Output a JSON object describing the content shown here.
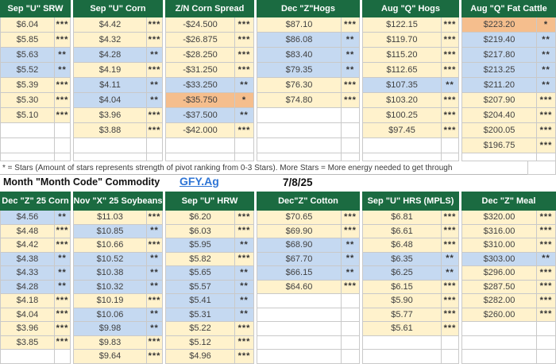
{
  "note": "* = Stars (Amount of stars represents strength of pivot ranking from 0-3 Stars). More Stars = More energy needed to get through",
  "legend_title": "Month \"Month Code\" Commodity",
  "link_label": "GFY.Ag",
  "report_date": "7/8/25",
  "star_symbol": "*",
  "colors": {
    "header_green": "#1B6B41",
    "cream": "#FFF2CC",
    "blue": "#C5D9F1",
    "orange": "#F5BE8D",
    "value_text": "#404040",
    "link_blue": "#2E75D6",
    "grid_border": "#C9C9C9",
    "star": "#333333"
  },
  "top_tables": [
    {
      "title": "Sep \"U\" SRW",
      "rows": [
        {
          "value": "$6.04",
          "stars": 3,
          "bg": "c"
        },
        {
          "value": "$5.85",
          "stars": 3,
          "bg": "c"
        },
        {
          "value": "$5.63",
          "stars": 2,
          "bg": "b"
        },
        {
          "value": "$5.52",
          "stars": 2,
          "bg": "b"
        },
        {
          "value": "$5.39",
          "stars": 3,
          "bg": "c"
        },
        {
          "value": "$5.30",
          "stars": 3,
          "bg": "c"
        },
        {
          "value": "$5.10",
          "stars": 3,
          "bg": "c"
        }
      ]
    },
    {
      "title": "Sep \"U\" Corn",
      "rows": [
        {
          "value": "$4.42",
          "stars": 3,
          "bg": "c"
        },
        {
          "value": "$4.32",
          "stars": 3,
          "bg": "c"
        },
        {
          "value": "$4.28",
          "stars": 2,
          "bg": "b"
        },
        {
          "value": "$4.19",
          "stars": 3,
          "bg": "c"
        },
        {
          "value": "$4.11",
          "stars": 2,
          "bg": "b"
        },
        {
          "value": "$4.04",
          "stars": 2,
          "bg": "b"
        },
        {
          "value": "$3.96",
          "stars": 3,
          "bg": "c"
        },
        {
          "value": "$3.88",
          "stars": 3,
          "bg": "c"
        }
      ]
    },
    {
      "title": "Z/N Corn Spread",
      "rows": [
        {
          "value": "-$24.500",
          "stars": 3,
          "bg": "c"
        },
        {
          "value": "-$26.875",
          "stars": 3,
          "bg": "c"
        },
        {
          "value": "-$28.250",
          "stars": 3,
          "bg": "c"
        },
        {
          "value": "-$31.250",
          "stars": 3,
          "bg": "c"
        },
        {
          "value": "-$33.250",
          "stars": 2,
          "bg": "b"
        },
        {
          "value": "-$35.750",
          "stars": 1,
          "bg": "o"
        },
        {
          "value": "-$37.500",
          "stars": 2,
          "bg": "b"
        },
        {
          "value": "-$42.000",
          "stars": 3,
          "bg": "c"
        }
      ]
    },
    {
      "title": "Dec \"Z\"Hogs",
      "rows": [
        {
          "value": "$87.10",
          "stars": 3,
          "bg": "c"
        },
        {
          "value": "$86.08",
          "stars": 2,
          "bg": "b"
        },
        {
          "value": "$83.40",
          "stars": 2,
          "bg": "b"
        },
        {
          "value": "$79.35",
          "stars": 2,
          "bg": "b"
        },
        {
          "value": "$76.30",
          "stars": 3,
          "bg": "c"
        },
        {
          "value": "$74.80",
          "stars": 3,
          "bg": "c"
        }
      ]
    },
    {
      "title": "Aug \"Q\" Hogs",
      "rows": [
        {
          "value": "$122.15",
          "stars": 3,
          "bg": "c"
        },
        {
          "value": "$119.70",
          "stars": 3,
          "bg": "c"
        },
        {
          "value": "$115.20",
          "stars": 3,
          "bg": "c"
        },
        {
          "value": "$112.65",
          "stars": 3,
          "bg": "c"
        },
        {
          "value": "$107.35",
          "stars": 2,
          "bg": "b"
        },
        {
          "value": "$103.20",
          "stars": 3,
          "bg": "c"
        },
        {
          "value": "$100.25",
          "stars": 3,
          "bg": "c"
        },
        {
          "value": "$97.45",
          "stars": 3,
          "bg": "c"
        }
      ]
    },
    {
      "title": "Aug \"Q\" Fat  Cattle",
      "rows": [
        {
          "value": "$223.20",
          "stars": 1,
          "bg": "o"
        },
        {
          "value": "$219.40",
          "stars": 2,
          "bg": "b"
        },
        {
          "value": "$217.80",
          "stars": 2,
          "bg": "b"
        },
        {
          "value": "$213.25",
          "stars": 2,
          "bg": "b"
        },
        {
          "value": "$211.20",
          "stars": 2,
          "bg": "b"
        },
        {
          "value": "$207.90",
          "stars": 3,
          "bg": "c"
        },
        {
          "value": "$204.40",
          "stars": 3,
          "bg": "c"
        },
        {
          "value": "$200.05",
          "stars": 3,
          "bg": "c"
        },
        {
          "value": "$196.75",
          "stars": 3,
          "bg": "c"
        }
      ]
    }
  ],
  "bottom_tables": [
    {
      "title": "Dec \"Z\" 25 Corn",
      "rows": [
        {
          "value": "$4.56",
          "stars": 2,
          "bg": "b"
        },
        {
          "value": "$4.48",
          "stars": 3,
          "bg": "c"
        },
        {
          "value": "$4.42",
          "stars": 3,
          "bg": "c"
        },
        {
          "value": "$4.38",
          "stars": 2,
          "bg": "b"
        },
        {
          "value": "$4.33",
          "stars": 2,
          "bg": "b"
        },
        {
          "value": "$4.28",
          "stars": 2,
          "bg": "b"
        },
        {
          "value": "$4.18",
          "stars": 3,
          "bg": "c"
        },
        {
          "value": "$4.04",
          "stars": 3,
          "bg": "c"
        },
        {
          "value": "$3.96",
          "stars": 3,
          "bg": "c"
        },
        {
          "value": "$3.85",
          "stars": 3,
          "bg": "c"
        }
      ]
    },
    {
      "title": "Nov \"X\" 25 Soybeans",
      "rows": [
        {
          "value": "$11.03",
          "stars": 3,
          "bg": "c"
        },
        {
          "value": "$10.85",
          "stars": 2,
          "bg": "b"
        },
        {
          "value": "$10.66",
          "stars": 3,
          "bg": "c"
        },
        {
          "value": "$10.52",
          "stars": 2,
          "bg": "b"
        },
        {
          "value": "$10.38",
          "stars": 2,
          "bg": "b"
        },
        {
          "value": "$10.32",
          "stars": 2,
          "bg": "b"
        },
        {
          "value": "$10.19",
          "stars": 3,
          "bg": "c"
        },
        {
          "value": "$10.06",
          "stars": 2,
          "bg": "b"
        },
        {
          "value": "$9.98",
          "stars": 2,
          "bg": "b"
        },
        {
          "value": "$9.83",
          "stars": 3,
          "bg": "c"
        },
        {
          "value": "$9.64",
          "stars": 3,
          "bg": "c"
        }
      ]
    },
    {
      "title": "Sep \"U\" HRW",
      "rows": [
        {
          "value": "$6.20",
          "stars": 3,
          "bg": "c"
        },
        {
          "value": "$6.03",
          "stars": 3,
          "bg": "c"
        },
        {
          "value": "$5.95",
          "stars": 2,
          "bg": "b"
        },
        {
          "value": "$5.82",
          "stars": 3,
          "bg": "c"
        },
        {
          "value": "$5.65",
          "stars": 2,
          "bg": "b"
        },
        {
          "value": "$5.57",
          "stars": 2,
          "bg": "b"
        },
        {
          "value": "$5.41",
          "stars": 2,
          "bg": "b"
        },
        {
          "value": "$5.31",
          "stars": 2,
          "bg": "b"
        },
        {
          "value": "$5.22",
          "stars": 3,
          "bg": "c"
        },
        {
          "value": "$5.12",
          "stars": 3,
          "bg": "c"
        },
        {
          "value": "$4.96",
          "stars": 3,
          "bg": "c"
        }
      ]
    },
    {
      "title": "Dec\"Z\" Cotton",
      "rows": [
        {
          "value": "$70.65",
          "stars": 3,
          "bg": "c"
        },
        {
          "value": "$69.90",
          "stars": 3,
          "bg": "c"
        },
        {
          "value": "$68.90",
          "stars": 2,
          "bg": "b"
        },
        {
          "value": "$67.70",
          "stars": 2,
          "bg": "b"
        },
        {
          "value": "$66.15",
          "stars": 2,
          "bg": "b"
        },
        {
          "value": "$64.60",
          "stars": 3,
          "bg": "c"
        }
      ]
    },
    {
      "title": "Sep \"U\" HRS (MPLS)",
      "rows": [
        {
          "value": "$6.81",
          "stars": 3,
          "bg": "c"
        },
        {
          "value": "$6.61",
          "stars": 3,
          "bg": "c"
        },
        {
          "value": "$6.48",
          "stars": 3,
          "bg": "c"
        },
        {
          "value": "$6.35",
          "stars": 2,
          "bg": "b"
        },
        {
          "value": "$6.25",
          "stars": 2,
          "bg": "b"
        },
        {
          "value": "$6.15",
          "stars": 3,
          "bg": "c"
        },
        {
          "value": "$5.90",
          "stars": 3,
          "bg": "c"
        },
        {
          "value": "$5.77",
          "stars": 3,
          "bg": "c"
        },
        {
          "value": "$5.61",
          "stars": 3,
          "bg": "c"
        }
      ]
    },
    {
      "title": "Dec \"Z\" Meal",
      "rows": [
        {
          "value": "$320.00",
          "stars": 3,
          "bg": "c"
        },
        {
          "value": "$316.00",
          "stars": 3,
          "bg": "c"
        },
        {
          "value": "$310.00",
          "stars": 3,
          "bg": "c"
        },
        {
          "value": "$303.00",
          "stars": 2,
          "bg": "b"
        },
        {
          "value": "$296.00",
          "stars": 3,
          "bg": "c"
        },
        {
          "value": "$287.50",
          "stars": 3,
          "bg": "c"
        },
        {
          "value": "$282.00",
          "stars": 3,
          "bg": "c"
        },
        {
          "value": "$260.00",
          "stars": 3,
          "bg": "c"
        }
      ]
    }
  ]
}
